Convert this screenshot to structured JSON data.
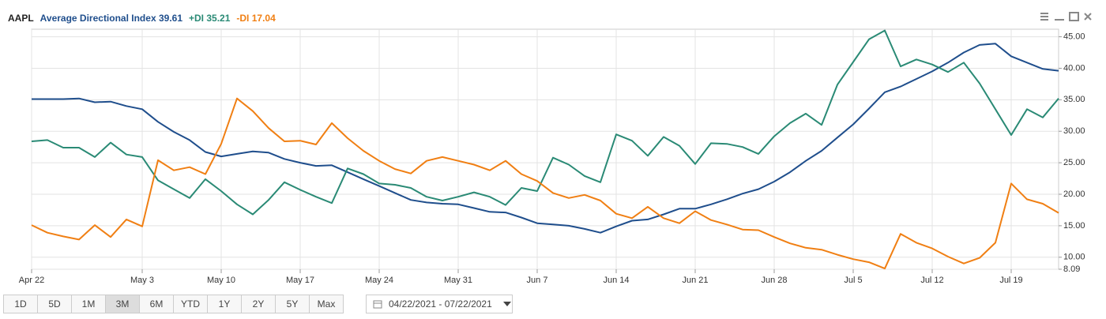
{
  "chart_data": {
    "type": "line",
    "symbol": "AAPL",
    "categories": [
      "Apr 22",
      null,
      null,
      null,
      null,
      null,
      null,
      "May 3",
      null,
      null,
      null,
      null,
      "May 10",
      null,
      null,
      null,
      null,
      "May 17",
      null,
      null,
      null,
      null,
      "May 24",
      null,
      null,
      null,
      null,
      "May 31",
      null,
      null,
      null,
      null,
      "Jun 7",
      null,
      null,
      null,
      null,
      "Jun 14",
      null,
      null,
      null,
      null,
      "Jun 21",
      null,
      null,
      null,
      null,
      "Jun 28",
      null,
      null,
      null,
      null,
      "Jul 5",
      null,
      null,
      null,
      null,
      "Jul 12",
      null,
      null,
      null,
      null,
      "Jul 19",
      null,
      null,
      null
    ],
    "series": [
      {
        "name": "Average Directional Index",
        "color": "#1f4e8c",
        "values": [
          35.1,
          35.1,
          35.1,
          35.2,
          34.6,
          34.7,
          34.0,
          33.5,
          31.5,
          29.9,
          28.6,
          26.7,
          26.0,
          26.4,
          26.8,
          26.6,
          25.6,
          25.0,
          24.5,
          24.6,
          23.5,
          22.4,
          21.3,
          20.2,
          19.1,
          18.7,
          18.5,
          18.4,
          17.8,
          17.2,
          17.1,
          16.3,
          15.4,
          15.2,
          15.0,
          14.5,
          13.9,
          14.9,
          15.8,
          16.0,
          16.8,
          17.7,
          17.7,
          18.4,
          19.2,
          20.1,
          20.8,
          22.0,
          23.5,
          25.3,
          26.9,
          29.0,
          31.1,
          33.6,
          36.2,
          37.1,
          38.3,
          39.5,
          40.9,
          42.5,
          43.7,
          43.9,
          41.9,
          40.9,
          39.9,
          39.61
        ]
      },
      {
        "name": "+DI",
        "color": "#2a8a75",
        "values": [
          28.4,
          28.6,
          27.4,
          27.4,
          25.9,
          28.2,
          26.3,
          25.9,
          22.2,
          20.8,
          19.4,
          22.4,
          20.5,
          18.4,
          16.8,
          19.1,
          21.9,
          20.7,
          19.6,
          18.6,
          24.1,
          23.2,
          21.7,
          21.5,
          21.0,
          19.6,
          19.0,
          19.6,
          20.3,
          19.6,
          18.3,
          21.0,
          20.5,
          25.8,
          24.7,
          22.9,
          21.9,
          29.5,
          28.5,
          26.1,
          29.1,
          27.7,
          24.8,
          28.1,
          28.0,
          27.5,
          26.4,
          29.2,
          31.3,
          32.8,
          31.0,
          37.4,
          41.0,
          44.6,
          46.0,
          40.3,
          41.4,
          40.6,
          39.4,
          40.9,
          37.6,
          33.5,
          29.4,
          33.5,
          32.2,
          35.21
        ]
      },
      {
        "name": "-DI",
        "color": "#f07f13",
        "values": [
          15.1,
          13.9,
          13.3,
          12.8,
          15.1,
          13.2,
          16.0,
          14.9,
          25.4,
          23.8,
          24.3,
          23.2,
          28.0,
          35.2,
          33.2,
          30.5,
          28.4,
          28.5,
          27.9,
          31.3,
          28.9,
          26.9,
          25.3,
          24.0,
          23.3,
          25.3,
          25.9,
          25.3,
          24.7,
          23.8,
          25.3,
          23.2,
          22.1,
          20.2,
          19.4,
          19.9,
          19.0,
          16.9,
          16.2,
          18.0,
          16.2,
          15.4,
          17.3,
          15.9,
          15.2,
          14.4,
          14.3,
          13.2,
          12.2,
          11.5,
          11.2,
          10.4,
          9.7,
          9.2,
          8.2,
          13.7,
          12.3,
          11.4,
          10.1,
          9.0,
          9.9,
          12.3,
          21.7,
          19.2,
          18.5,
          17.04
        ]
      }
    ],
    "ylim": [
      8.09,
      46.2
    ],
    "yticks": [
      8.09,
      {
        "value": 10,
        "label": "10.00"
      },
      {
        "value": 15,
        "label": "15.00"
      },
      {
        "value": 20,
        "label": "20.00"
      },
      {
        "value": 25,
        "label": "25.00"
      },
      {
        "value": 30,
        "label": "30.00"
      },
      {
        "value": 35,
        "label": "35.00"
      },
      {
        "value": 40,
        "label": "40.00"
      },
      {
        "value": 45,
        "label": "45.00"
      }
    ],
    "grid": true,
    "ranges": [
      "1D",
      "5D",
      "1M",
      "3M",
      "6M",
      "YTD",
      "1Y",
      "2Y",
      "5Y",
      "Max"
    ],
    "selected_range": "3M",
    "date_range": "04/22/2021 - 07/22/2021"
  }
}
